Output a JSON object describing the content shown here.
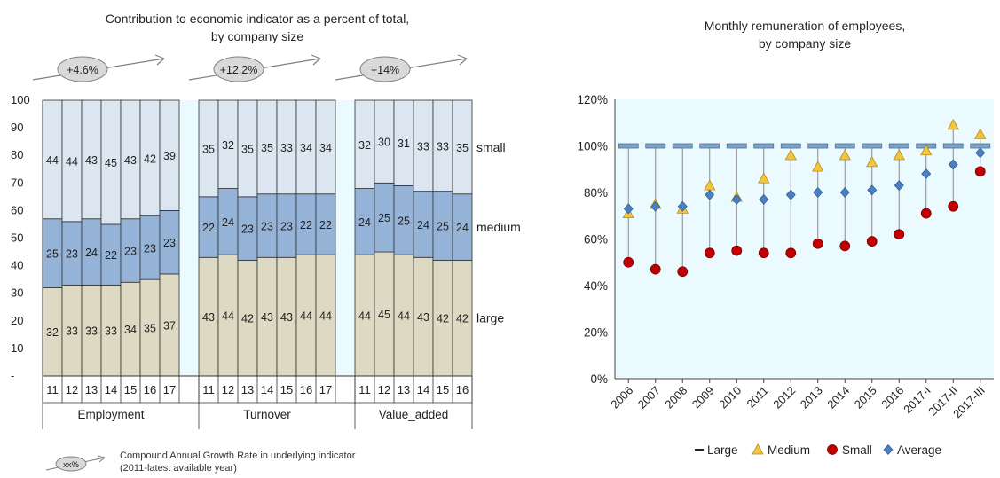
{
  "chart_data": [
    {
      "type": "bar",
      "stacked": true,
      "title": "Contribution to economic indicator as a percent of total,",
      "subtitle": "by company size",
      "ylim": [
        0,
        100
      ],
      "y_ticks": [
        "100",
        "90",
        "80",
        "70",
        "60",
        "50",
        "40",
        "30",
        "20",
        "10",
        "-"
      ],
      "series_names": [
        "large",
        "medium",
        "small"
      ],
      "colors": {
        "large": "#ddd9c3",
        "medium": "#95b3d7",
        "small": "#dce6f1",
        "gap": "#eafaff",
        "edge": "#333333"
      },
      "groups": [
        {
          "label": "Employment",
          "growth": "+4.6%",
          "categories": [
            "11",
            "12",
            "13",
            "14",
            "15",
            "16",
            "17"
          ],
          "large": [
            32,
            33,
            33,
            33,
            34,
            35,
            37
          ],
          "medium": [
            25,
            23,
            24,
            22,
            23,
            23,
            23
          ],
          "small": [
            44,
            44,
            43,
            45,
            43,
            42,
            39
          ]
        },
        {
          "label": "Turnover",
          "growth": "+12.2%",
          "categories": [
            "11",
            "12",
            "13",
            "14",
            "15",
            "16",
            "17"
          ],
          "large": [
            43,
            44,
            42,
            43,
            43,
            44,
            44
          ],
          "medium": [
            22,
            24,
            23,
            23,
            23,
            22,
            22
          ],
          "small": [
            35,
            32,
            35,
            35,
            33,
            34,
            34
          ]
        },
        {
          "label": "Value_added",
          "growth": "+14%",
          "categories": [
            "11",
            "12",
            "13",
            "14",
            "15",
            "16"
          ],
          "large": [
            44,
            45,
            44,
            43,
            42,
            42
          ],
          "medium": [
            24,
            25,
            25,
            24,
            25,
            24
          ],
          "small": [
            32,
            30,
            31,
            33,
            33,
            35
          ]
        }
      ],
      "footnote": {
        "badge": "xx%",
        "line1": "Compound Annual Growth Rate in underlying indicator",
        "line2": "(2011-latest available year)"
      }
    },
    {
      "type": "scatter",
      "title": "Monthly remuneration of employees,",
      "subtitle": "by company size",
      "categories": [
        "2006",
        "2007",
        "2008",
        "2009",
        "2010",
        "2011",
        "2012",
        "2013",
        "2014",
        "2015",
        "2016",
        "2017-I",
        "2017-II",
        "2017-III"
      ],
      "ylim": [
        0,
        120
      ],
      "y_ticks": [
        "0%",
        "20%",
        "40%",
        "60%",
        "80%",
        "100%",
        "120%"
      ],
      "plot_background": "#eafaff",
      "series": [
        {
          "name": "Large",
          "marker": "dash",
          "color": "#7fa3c7",
          "values": [
            100,
            100,
            100,
            100,
            100,
            100,
            100,
            100,
            100,
            100,
            100,
            100,
            100,
            100
          ]
        },
        {
          "name": "Medium",
          "marker": "triangle",
          "color": "#f3c53c",
          "values": [
            71,
            75,
            73,
            83,
            78,
            86,
            96,
            91,
            96,
            93,
            96,
            98,
            109,
            105
          ]
        },
        {
          "name": "Small",
          "marker": "circle",
          "color": "#c00000",
          "values": [
            50,
            47,
            46,
            54,
            55,
            54,
            54,
            58,
            57,
            59,
            62,
            71,
            74,
            89
          ]
        },
        {
          "name": "Average",
          "marker": "diamond",
          "color": "#4a7fc1",
          "values": [
            73,
            74,
            74,
            79,
            77,
            77,
            79,
            80,
            80,
            81,
            83,
            88,
            92,
            97
          ]
        }
      ]
    }
  ]
}
